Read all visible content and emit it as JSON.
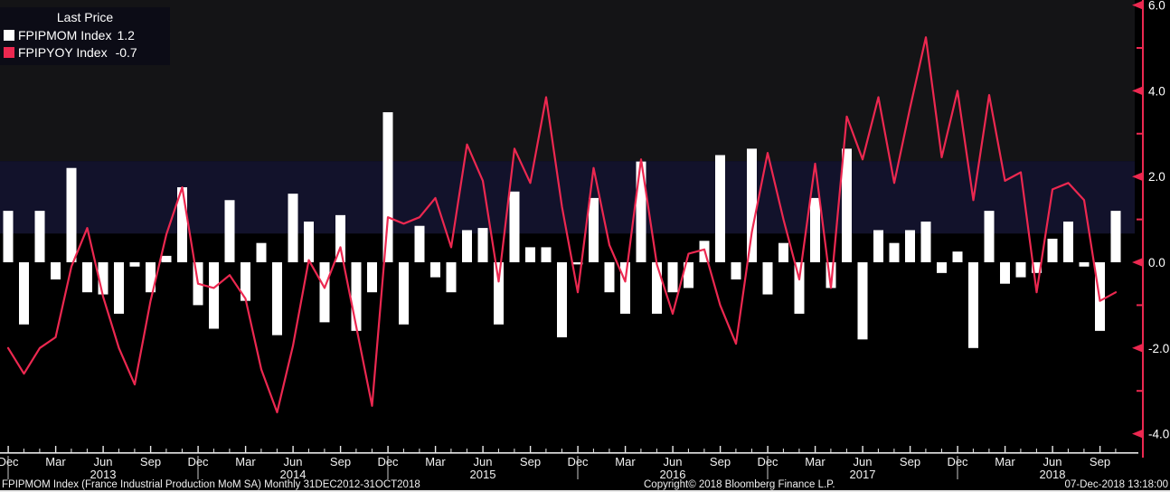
{
  "legend": {
    "title": "Last Price",
    "series": [
      {
        "label": "FPIPMOM Index",
        "value": "1.2",
        "color": "#ffffff"
      },
      {
        "label": "FPIPYOY Index",
        "value": "-0.7",
        "color": "#ec2850"
      }
    ]
  },
  "footer": {
    "left": "FPIPMOM Index (France Industrial Production MoM SA)  Monthly 31DEC2012-31OCT2018",
    "copyright": "Copyright© 2018 Bloomberg Finance L.P.",
    "timestamp": "07-Dec-2018 13:18:00"
  },
  "colors": {
    "background": "#000000",
    "plot_upper_zone": "#141416",
    "highlight_band": "#12122b",
    "plot_lower_zone": "#000000",
    "bar": "#ffffff",
    "line": "#ec2850",
    "axis_red": "#ec2850",
    "axis_white": "#e8e8e8",
    "text": "#f2f2f2"
  },
  "chart_data": {
    "type": "bar+line",
    "title": "",
    "xlabel": "",
    "ylabel": "",
    "ylim": [
      -4.6,
      6.15
    ],
    "yticks_major": [
      6.0,
      4.0,
      2.0,
      0.0,
      -2.0,
      -4.0
    ],
    "yticks_minor": [
      5.0,
      3.0,
      1.0,
      -1.0,
      -3.0
    ],
    "highlight_band": {
      "from": 0.67,
      "to": 2.36
    },
    "legend_position": "top-left",
    "grid": false,
    "categories": [
      "Dec 2012",
      "Jan 2013",
      "Feb 2013",
      "Mar 2013",
      "Apr 2013",
      "May 2013",
      "Jun 2013",
      "Jul 2013",
      "Aug 2013",
      "Sep 2013",
      "Oct 2013",
      "Nov 2013",
      "Dec 2013",
      "Jan 2014",
      "Feb 2014",
      "Mar 2014",
      "Apr 2014",
      "May 2014",
      "Jun 2014",
      "Jul 2014",
      "Aug 2014",
      "Sep 2014",
      "Oct 2014",
      "Nov 2014",
      "Dec 2014",
      "Jan 2015",
      "Feb 2015",
      "Mar 2015",
      "Apr 2015",
      "May 2015",
      "Jun 2015",
      "Jul 2015",
      "Aug 2015",
      "Sep 2015",
      "Oct 2015",
      "Nov 2015",
      "Dec 2015",
      "Jan 2016",
      "Feb 2016",
      "Mar 2016",
      "Apr 2016",
      "May 2016",
      "Jun 2016",
      "Jul 2016",
      "Aug 2016",
      "Sep 2016",
      "Oct 2016",
      "Nov 2016",
      "Dec 2016",
      "Jan 2017",
      "Feb 2017",
      "Mar 2017",
      "Apr 2017",
      "May 2017",
      "Jun 2017",
      "Jul 2017",
      "Aug 2017",
      "Sep 2017",
      "Oct 2017",
      "Nov 2017",
      "Dec 2017",
      "Jan 2018",
      "Feb 2018",
      "Mar 2018",
      "Apr 2018",
      "May 2018",
      "Jun 2018",
      "Jul 2018",
      "Aug 2018",
      "Sep 2018",
      "Oct 2018"
    ],
    "series": [
      {
        "name": "FPIPMOM Index",
        "type": "bar",
        "color": "#ffffff",
        "last": 1.2,
        "values": [
          1.2,
          -1.45,
          1.2,
          -0.4,
          2.2,
          -0.7,
          -0.75,
          -1.2,
          -0.1,
          -0.7,
          0.15,
          1.75,
          -1.0,
          -1.55,
          1.45,
          -0.9,
          0.45,
          -1.7,
          1.6,
          0.95,
          -1.4,
          1.1,
          -1.6,
          -0.7,
          3.5,
          -1.45,
          0.85,
          -0.35,
          -0.7,
          0.75,
          0.8,
          -1.45,
          1.65,
          0.35,
          0.35,
          -1.75,
          -0.05,
          1.5,
          -0.7,
          -1.2,
          2.35,
          -1.2,
          -0.7,
          -0.6,
          0.5,
          2.5,
          -0.4,
          2.65,
          -0.75,
          0.45,
          -1.2,
          1.5,
          -0.6,
          2.65,
          -1.8,
          0.75,
          0.45,
          0.75,
          0.95,
          -0.25,
          0.25,
          -2.0,
          1.2,
          -0.5,
          -0.35,
          -0.25,
          0.55,
          0.95,
          -0.1,
          -1.6,
          1.2
        ]
      },
      {
        "name": "FPIPYOY Index",
        "type": "line",
        "color": "#ec2850",
        "last": -0.7,
        "values": [
          -2.0,
          -2.6,
          -2.0,
          -1.75,
          -0.1,
          0.8,
          -0.8,
          -2.0,
          -2.85,
          -0.9,
          0.65,
          1.75,
          -0.5,
          -0.6,
          -0.3,
          -0.85,
          -2.5,
          -3.5,
          -1.95,
          0.05,
          -0.6,
          0.35,
          -1.5,
          -3.35,
          1.05,
          0.9,
          1.05,
          1.5,
          0.35,
          2.75,
          1.9,
          -0.45,
          2.65,
          1.85,
          3.85,
          1.3,
          -0.7,
          2.2,
          0.4,
          -0.45,
          2.4,
          -0.05,
          -1.2,
          0.2,
          0.3,
          -1.0,
          -1.9,
          0.7,
          2.55,
          1.0,
          -0.4,
          2.3,
          -0.6,
          3.4,
          2.4,
          3.85,
          1.85,
          3.6,
          5.25,
          2.45,
          4.0,
          1.45,
          3.9,
          1.9,
          2.1,
          -0.7,
          1.7,
          1.85,
          1.45,
          -0.9,
          -0.7
        ]
      }
    ],
    "year_labels": [
      "2013",
      "2014",
      "2015",
      "2016",
      "2017",
      "2018"
    ]
  }
}
